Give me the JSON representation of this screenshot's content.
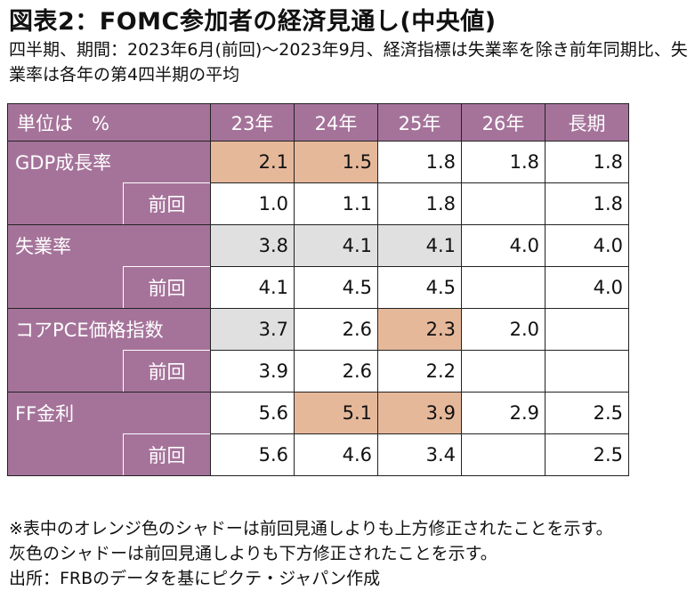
{
  "title": "図表2：FOMC参加者の経済見通し(中央値)",
  "subtitle": "四半期、期間：2023年6月(前回)～2023年9月、経済指標は失業率を除き前年同期比、失業率は各年の第4四半期の平均",
  "table": {
    "unit_label": "単位は　%",
    "columns": [
      "23年",
      "24年",
      "25年",
      "26年",
      "長期"
    ],
    "rows": [
      {
        "label": "GDP成長率",
        "sub": "",
        "values": [
          "2.1",
          "1.5",
          "1.8",
          "1.8",
          "1.8"
        ],
        "shade": [
          "up",
          "up",
          "",
          "",
          ""
        ]
      },
      {
        "label": "",
        "sub": "前回",
        "values": [
          "1.0",
          "1.1",
          "1.8",
          "",
          "1.8"
        ],
        "shade": [
          "",
          "",
          "",
          "",
          ""
        ]
      },
      {
        "label": "失業率",
        "sub": "",
        "values": [
          "3.8",
          "4.1",
          "4.1",
          "4.0",
          "4.0"
        ],
        "shade": [
          "down",
          "down",
          "down",
          "",
          ""
        ]
      },
      {
        "label": "",
        "sub": "前回",
        "values": [
          "4.1",
          "4.5",
          "4.5",
          "",
          "4.0"
        ],
        "shade": [
          "",
          "",
          "",
          "",
          ""
        ]
      },
      {
        "label": "コアPCE価格指数",
        "sub": "",
        "values": [
          "3.7",
          "2.6",
          "2.3",
          "2.0",
          ""
        ],
        "shade": [
          "down",
          "",
          "up",
          "",
          ""
        ]
      },
      {
        "label": "",
        "sub": "前回",
        "values": [
          "3.9",
          "2.6",
          "2.2",
          "",
          ""
        ],
        "shade": [
          "",
          "",
          "",
          "",
          ""
        ]
      },
      {
        "label": "FF金利",
        "sub": "",
        "values": [
          "5.6",
          "5.1",
          "3.9",
          "2.9",
          "2.5"
        ],
        "shade": [
          "",
          "up",
          "up",
          "",
          ""
        ]
      },
      {
        "label": "",
        "sub": "前回",
        "values": [
          "5.6",
          "4.6",
          "3.4",
          "",
          "2.5"
        ],
        "shade": [
          "",
          "",
          "",
          "",
          ""
        ]
      }
    ]
  },
  "notes": [
    "※表中のオレンジ色のシャドーは前回見通しよりも上方修正されたことを示す。",
    "灰色のシャドーは前回見通しよりも下方修正されたことを示す。",
    "出所：FRBのデータを基にピクテ・ジャパン作成"
  ],
  "colors": {
    "header_bg": "#a5739a",
    "upward_revision": "#e6b89a",
    "downward_revision": "#e0e0e0"
  }
}
